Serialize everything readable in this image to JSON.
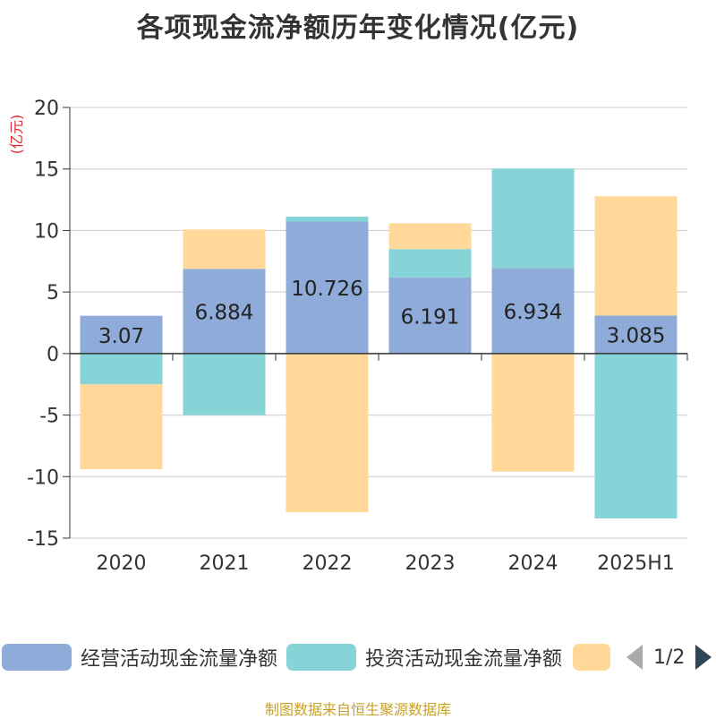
{
  "title": "各项现金流净额历年变化情况(亿元)",
  "source": "制图数据来自恒生聚源数据库",
  "pager": {
    "text": "1/2"
  },
  "colors": {
    "operating": "#8eabd9",
    "investing": "#86d4d8",
    "financing": "#ffd89a",
    "axis": "#333333",
    "grid": "#cccccc",
    "unit": "#e0262f"
  },
  "chart_data": {
    "type": "bar",
    "stacked": true,
    "categories": [
      "2020",
      "2021",
      "2022",
      "2023",
      "2024",
      "2025H1"
    ],
    "ylabel": "(亿元)",
    "ylim": [
      -15,
      20
    ],
    "yticks": [
      20,
      15,
      10,
      5,
      0,
      -5,
      -10,
      -15
    ],
    "grid": true,
    "legend_position": "bottom",
    "series": [
      {
        "name": "经营活动现金流量净额",
        "color": "#8eabd9",
        "values": [
          3.07,
          6.884,
          10.726,
          6.191,
          6.934,
          3.085
        ],
        "labels": [
          "3.07",
          "6.884",
          "10.726",
          "6.191",
          "6.934",
          "3.085"
        ]
      },
      {
        "name": "投资活动现金流量净额",
        "color": "#86d4d8",
        "values": [
          -2.5,
          -5.0,
          0.4,
          2.3,
          8.1,
          -13.4
        ]
      },
      {
        "name": "",
        "color": "#ffd89a",
        "values": [
          -6.9,
          3.2,
          -12.9,
          2.1,
          -9.6,
          9.7
        ]
      }
    ]
  }
}
